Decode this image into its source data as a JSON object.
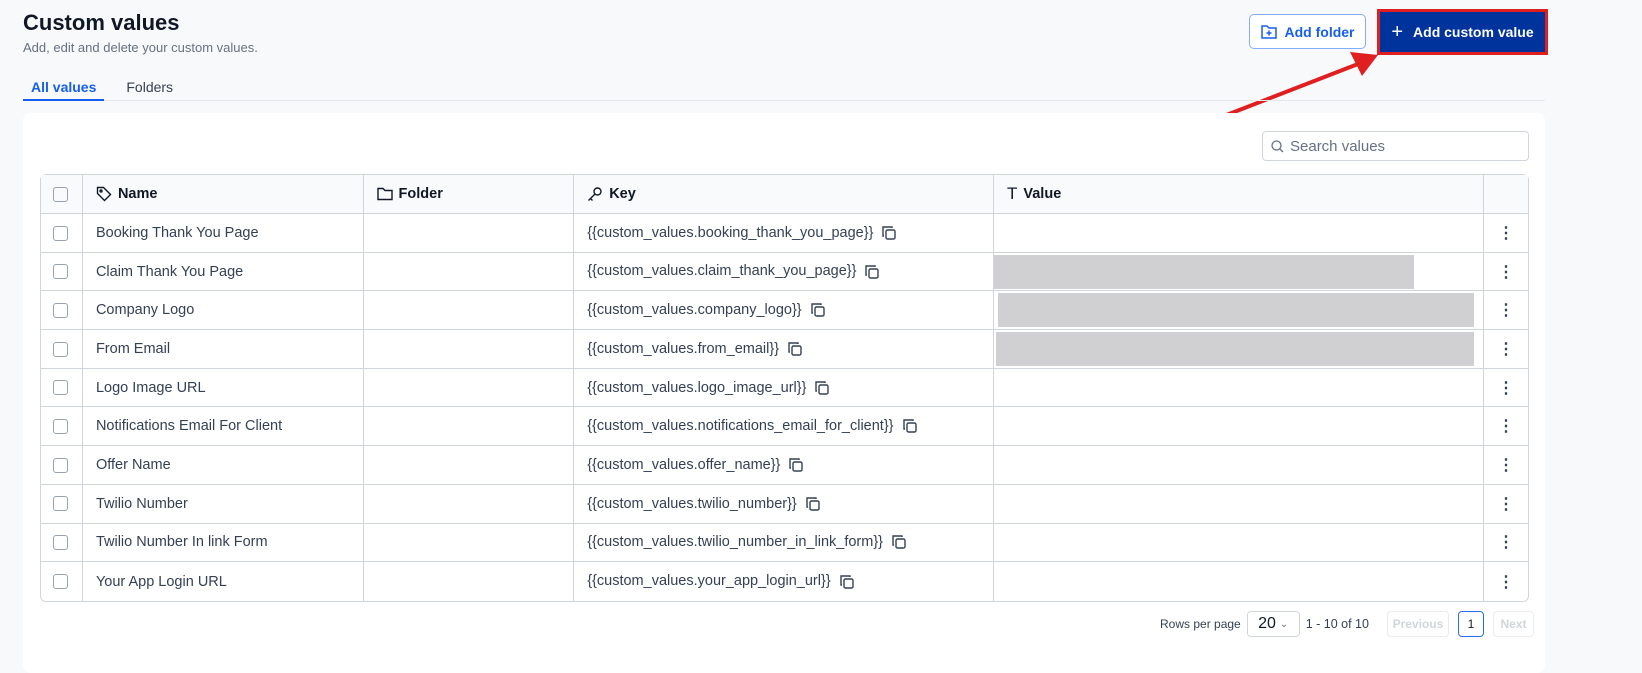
{
  "header": {
    "title": "Custom values",
    "subtitle": "Add, edit and delete your custom values.",
    "add_folder": "Add folder",
    "add_custom_value": "Add custom value"
  },
  "tabs": [
    {
      "label": "All values",
      "active": true
    },
    {
      "label": "Folders",
      "active": false
    }
  ],
  "search": {
    "placeholder": "Search values"
  },
  "table": {
    "columns": [
      "Name",
      "Folder",
      "Key",
      "Value"
    ],
    "rows": [
      {
        "name": "Booking Thank You Page",
        "folder": "",
        "key": "{{custom_values.booking_thank_you_page}}",
        "value": ""
      },
      {
        "name": "Claim Thank You Page",
        "folder": "",
        "key": "{{custom_values.claim_thank_you_page}}",
        "value": "[redacted]"
      },
      {
        "name": "Company Logo",
        "folder": "",
        "key": "{{custom_values.company_logo}}",
        "value": "[redacted]"
      },
      {
        "name": "From Email",
        "folder": "",
        "key": "{{custom_values.from_email}}",
        "value": "[redacted]"
      },
      {
        "name": "Logo Image URL",
        "folder": "",
        "key": "{{custom_values.logo_image_url}}",
        "value": ""
      },
      {
        "name": "Notifications Email For Client",
        "folder": "",
        "key": "{{custom_values.notifications_email_for_client}}",
        "value": ""
      },
      {
        "name": "Offer Name",
        "folder": "",
        "key": "{{custom_values.offer_name}}",
        "value": ""
      },
      {
        "name": "Twilio Number",
        "folder": "",
        "key": "{{custom_values.twilio_number}}",
        "value": ""
      },
      {
        "name": "Twilio Number In link Form",
        "folder": "",
        "key": "{{custom_values.twilio_number_in_link_form}}",
        "value": ""
      },
      {
        "name": "Your App Login URL",
        "folder": "",
        "key": "{{custom_values.your_app_login_url}}",
        "value": ""
      }
    ]
  },
  "pagination": {
    "rows_per_page_label": "Rows per page",
    "rows_per_page": "20",
    "range": "1 - 10 of 10",
    "previous": "Previous",
    "page": "1",
    "next": "Next"
  },
  "colors": {
    "primary": "#00339b",
    "accent": "#155eef",
    "annotation": "#e02020"
  }
}
